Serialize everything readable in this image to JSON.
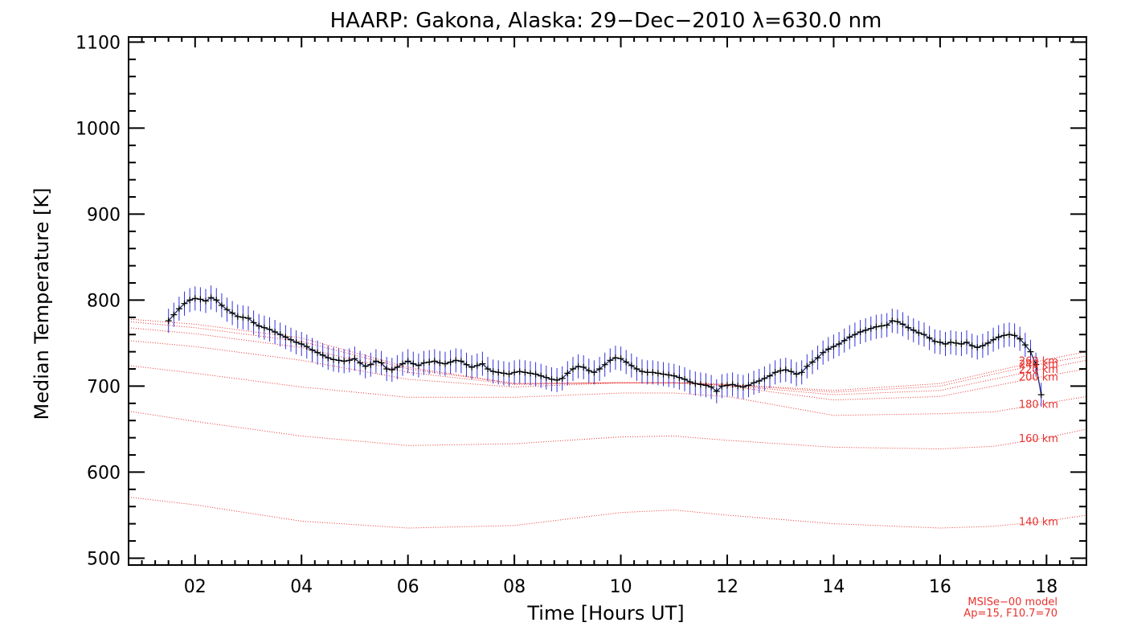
{
  "chart_data": {
    "type": "line",
    "title": "HAARP: Gakona,  Alaska: 29−Dec−2010 λ=630.0 nm",
    "xlabel": "Time [Hours UT]",
    "ylabel": "Median Temperature [K]",
    "xlim": [
      0.75,
      18.75
    ],
    "ylim": [
      492,
      1106
    ],
    "x_ticks": [
      2,
      4,
      6,
      8,
      10,
      12,
      14,
      16,
      18
    ],
    "x_tick_labels": [
      "02",
      "04",
      "06",
      "08",
      "10",
      "12",
      "14",
      "16",
      "18"
    ],
    "y_ticks": [
      500,
      600,
      700,
      800,
      900,
      1000,
      1100
    ],
    "y_tick_labels": [
      "500",
      "600",
      "700",
      "800",
      "900",
      "1000",
      "1100"
    ],
    "grid": false,
    "colors": {
      "measured_line": "#1a2a6c",
      "error_bars": "#3333dd",
      "markers": "#000000",
      "model": "#e8322e"
    },
    "measured": {
      "x": [
        1.5,
        1.6,
        1.7,
        1.8,
        1.9,
        2.0,
        2.1,
        2.2,
        2.3,
        2.4,
        2.5,
        2.6,
        2.7,
        2.8,
        2.9,
        3.0,
        3.1,
        3.2,
        3.3,
        3.4,
        3.5,
        3.6,
        3.7,
        3.8,
        3.9,
        4.0,
        4.1,
        4.2,
        4.3,
        4.4,
        4.5,
        4.6,
        4.7,
        4.8,
        4.9,
        5.0,
        5.1,
        5.2,
        5.3,
        5.4,
        5.5,
        5.6,
        5.7,
        5.8,
        5.9,
        6.0,
        6.1,
        6.2,
        6.3,
        6.4,
        6.5,
        6.6,
        6.7,
        6.8,
        6.9,
        7.0,
        7.1,
        7.2,
        7.3,
        7.4,
        7.5,
        7.6,
        7.7,
        7.8,
        7.9,
        8.0,
        8.1,
        8.2,
        8.3,
        8.4,
        8.5,
        8.6,
        8.7,
        8.8,
        8.9,
        9.0,
        9.1,
        9.2,
        9.3,
        9.4,
        9.5,
        9.6,
        9.7,
        9.8,
        9.9,
        10.0,
        10.1,
        10.2,
        10.3,
        10.4,
        10.5,
        10.6,
        10.7,
        10.8,
        10.9,
        11.0,
        11.1,
        11.2,
        11.3,
        11.4,
        11.5,
        11.6,
        11.7,
        11.8,
        11.9,
        12.0,
        12.1,
        12.2,
        12.3,
        12.4,
        12.5,
        12.6,
        12.7,
        12.8,
        12.9,
        13.0,
        13.1,
        13.2,
        13.3,
        13.4,
        13.5,
        13.6,
        13.7,
        13.8,
        13.9,
        14.0,
        14.1,
        14.2,
        14.3,
        14.4,
        14.5,
        14.6,
        14.7,
        14.8,
        14.9,
        15.0,
        15.1,
        15.2,
        15.3,
        15.4,
        15.5,
        15.6,
        15.7,
        15.8,
        15.9,
        16.0,
        16.1,
        16.2,
        16.3,
        16.4,
        16.5,
        16.6,
        16.7,
        16.8,
        16.9,
        17.0,
        17.1,
        17.2,
        17.3,
        17.4,
        17.5,
        17.6,
        17.7,
        17.8,
        17.9
      ],
      "y": [
        776,
        783,
        790,
        796,
        800,
        802,
        801,
        799,
        803,
        800,
        794,
        789,
        785,
        781,
        780,
        779,
        774,
        770,
        768,
        766,
        763,
        760,
        757,
        754,
        751,
        749,
        746,
        742,
        739,
        736,
        733,
        731,
        730,
        729,
        730,
        732,
        727,
        723,
        725,
        729,
        727,
        720,
        719,
        722,
        726,
        729,
        726,
        724,
        727,
        728,
        729,
        727,
        726,
        728,
        730,
        729,
        725,
        722,
        724,
        726,
        720,
        717,
        716,
        715,
        714,
        716,
        717,
        716,
        715,
        714,
        712,
        710,
        708,
        707,
        709,
        715,
        720,
        723,
        722,
        718,
        716,
        720,
        725,
        730,
        733,
        732,
        728,
        724,
        720,
        717,
        716,
        716,
        715,
        714,
        713,
        712,
        710,
        708,
        705,
        703,
        702,
        701,
        699,
        694,
        700,
        701,
        702,
        700,
        699,
        701,
        704,
        706,
        709,
        712,
        716,
        718,
        719,
        717,
        714,
        716,
        723,
        728,
        733,
        739,
        743,
        746,
        749,
        753,
        757,
        760,
        763,
        765,
        767,
        769,
        770,
        771,
        776,
        775,
        772,
        768,
        765,
        762,
        760,
        756,
        752,
        751,
        749,
        751,
        750,
        749,
        751,
        747,
        745,
        747,
        750,
        754,
        757,
        759,
        760,
        759,
        755,
        748,
        740,
        725,
        690
      ],
      "error": 14
    },
    "model": {
      "name": "MSISe−00 model",
      "params": "Ap=15, F10.7=70",
      "x": [
        0.75,
        2,
        4,
        6,
        8,
        10,
        11,
        12,
        14,
        16,
        17,
        18,
        18.75
      ],
      "curves": [
        {
          "label": "140 km",
          "y": [
            571,
            562,
            543,
            535,
            538,
            553,
            556,
            550,
            540,
            535,
            537,
            543,
            550
          ]
        },
        {
          "label": "160 km",
          "y": [
            671,
            659,
            642,
            631,
            633,
            641,
            642,
            637,
            629,
            627,
            630,
            640,
            650
          ]
        },
        {
          "label": "180 km",
          "y": [
            724,
            715,
            699,
            687,
            687,
            692,
            692,
            688,
            666,
            668,
            670,
            680,
            688
          ]
        },
        {
          "label": "200 km",
          "y": [
            753,
            746,
            730,
            708,
            699,
            704,
            704,
            700,
            684,
            688,
            700,
            712,
            720
          ]
        },
        {
          "label": "220 km",
          "y": [
            768,
            761,
            745,
            716,
            702,
            704,
            704,
            701,
            690,
            695,
            708,
            721,
            730
          ]
        },
        {
          "label": "240 km",
          "y": [
            775,
            768,
            752,
            720,
            703,
            704,
            704,
            702,
            693,
            700,
            714,
            727,
            735
          ]
        },
        {
          "label": "260 km",
          "y": [
            778,
            772,
            756,
            722,
            703,
            704,
            704,
            702,
            695,
            703,
            717,
            731,
            740
          ]
        }
      ]
    }
  }
}
